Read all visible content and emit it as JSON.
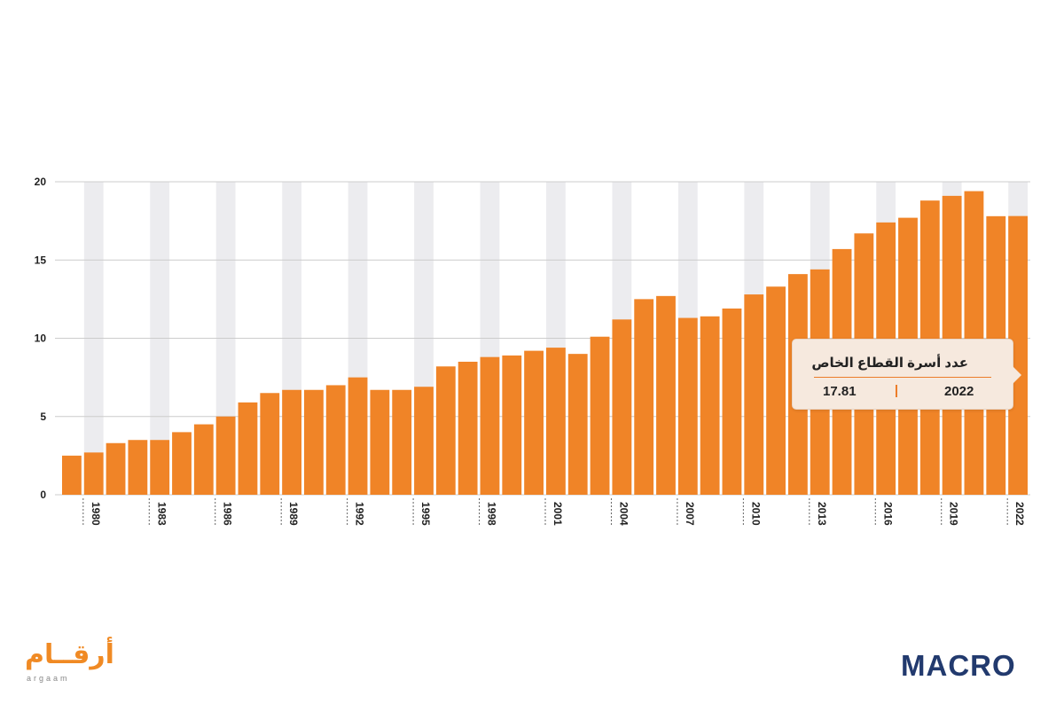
{
  "chart_data": {
    "type": "bar",
    "color": "#f08427",
    "band_color": "#ececef",
    "grid_color": "#cccccc",
    "ylim": [
      0,
      20
    ],
    "yticks": [
      0,
      5,
      10,
      15,
      20
    ],
    "xtick_labels": [
      "1980",
      "1983",
      "1986",
      "1989",
      "1992",
      "1995",
      "1998",
      "2001",
      "2004",
      "2007",
      "2010",
      "2013",
      "2016",
      "2019",
      "2022"
    ],
    "categories": [
      1979,
      1980,
      1981,
      1982,
      1983,
      1984,
      1985,
      1986,
      1987,
      1988,
      1989,
      1990,
      1991,
      1992,
      1993,
      1994,
      1995,
      1996,
      1997,
      1998,
      1999,
      2000,
      2001,
      2002,
      2003,
      2004,
      2005,
      2006,
      2007,
      2008,
      2009,
      2010,
      2011,
      2012,
      2013,
      2014,
      2015,
      2016,
      2017,
      2018,
      2019,
      2020,
      2021,
      2022
    ],
    "values": [
      2.5,
      2.7,
      3.3,
      3.5,
      3.5,
      4.0,
      4.5,
      5.0,
      5.9,
      6.5,
      6.7,
      6.7,
      7.0,
      7.5,
      6.7,
      6.7,
      6.9,
      8.2,
      8.5,
      8.8,
      8.9,
      9.2,
      9.4,
      9.0,
      10.1,
      11.2,
      12.5,
      12.7,
      11.3,
      11.4,
      11.9,
      12.8,
      13.3,
      14.1,
      14.4,
      15.7,
      16.7,
      17.4,
      17.7,
      18.8,
      19.1,
      19.4,
      17.8,
      17.81
    ],
    "tooltip": {
      "title": "عدد أسرة القطاع الخاص",
      "year": "2022",
      "value": "17.81"
    }
  },
  "branding": {
    "left_logo_ar": "أرقــام",
    "left_logo_en": "argaam",
    "right_logo": "MACRO"
  }
}
